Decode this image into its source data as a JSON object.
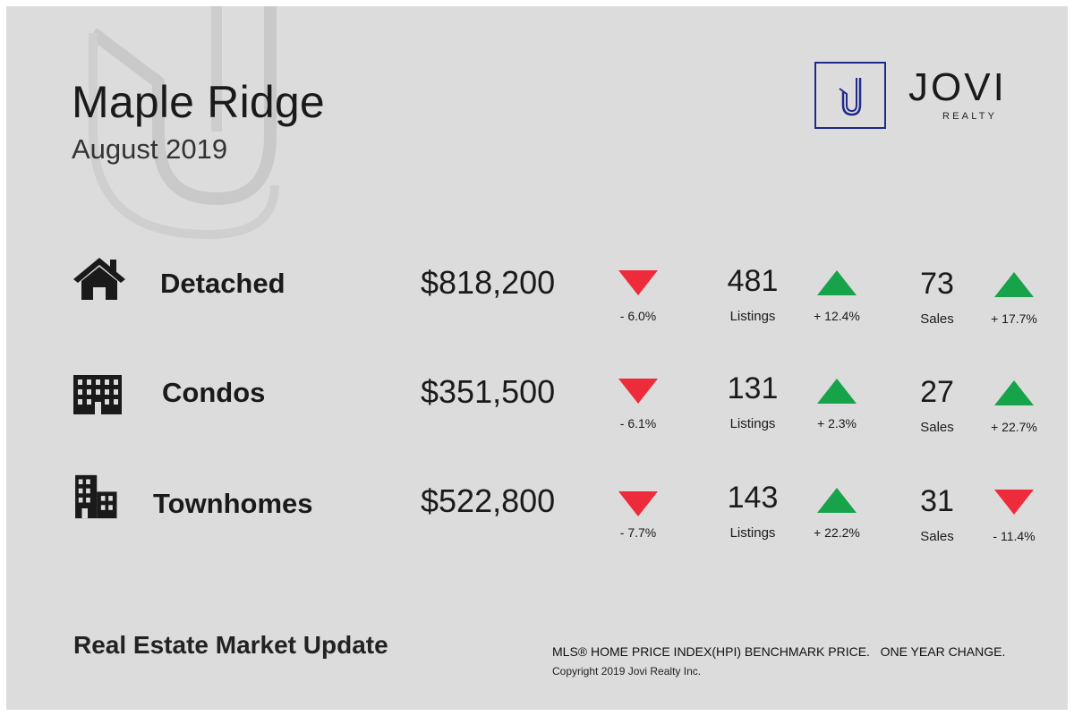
{
  "header": {
    "title": "Maple Ridge",
    "subtitle": "August 2019"
  },
  "logo": {
    "mark": "J",
    "name": "JOVI",
    "sub": "REALTY",
    "color": "#1f2a8a"
  },
  "colors": {
    "down": "#ee2b3a",
    "up": "#16a34a"
  },
  "rows": [
    {
      "icon": "house-icon",
      "type": "Detached",
      "price": "$818,200",
      "price_trend": "down",
      "price_change": "- 6.0%",
      "listings": "481",
      "listings_label": "Listings",
      "listings_trend": "up",
      "listings_change": "+ 12.4%",
      "sales": "73",
      "sales_label": "Sales",
      "sales_trend": "up",
      "sales_change": "+ 17.7%"
    },
    {
      "icon": "condo-building-icon",
      "type": "Condos",
      "price": "$351,500",
      "price_trend": "down",
      "price_change": "- 6.1%",
      "listings": "131",
      "listings_label": "Listings",
      "listings_trend": "up",
      "listings_change": "+ 2.3%",
      "sales": "27",
      "sales_label": "Sales",
      "sales_trend": "up",
      "sales_change": "+ 22.7%"
    },
    {
      "icon": "townhome-building-icon",
      "type": "Townhomes",
      "price": "$522,800",
      "price_trend": "down",
      "price_change": "- 7.7%",
      "listings": "143",
      "listings_label": "Listings",
      "listings_trend": "up",
      "listings_change": "+ 22.2%",
      "sales": "31",
      "sales_label": "Sales",
      "sales_trend": "down",
      "sales_change": "- 11.4%"
    }
  ],
  "footer": {
    "title": "Real Estate Market Update",
    "note": "MLS® HOME PRICE INDEX(HPI) BENCHMARK PRICE.   ONE YEAR CHANGE.",
    "copyright": "Copyright 2019 Jovi Realty Inc."
  }
}
